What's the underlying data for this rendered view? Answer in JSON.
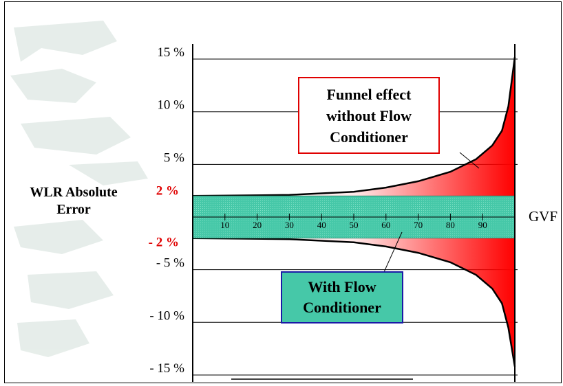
{
  "chart_data": {
    "type": "area",
    "title": "",
    "ylabel": [
      "WLR Absolute",
      "Error"
    ],
    "xlabel": "GVF",
    "y_tick_labels": [
      "15 %",
      "10 %",
      "5 %",
      "- 5 %",
      "- 10 %",
      "- 15 %"
    ],
    "y_tick_values": [
      15,
      10,
      5,
      -5,
      -10,
      -15
    ],
    "band_labels": [
      "2 %",
      "- 2 %"
    ],
    "band_values": [
      2,
      -2
    ],
    "x_tick_labels": [
      "10",
      "20",
      "30",
      "40",
      "50",
      "60",
      "70",
      "80",
      "90"
    ],
    "x_tick_values": [
      10,
      20,
      30,
      40,
      50,
      60,
      70,
      80,
      90
    ],
    "xlim": [
      0,
      100
    ],
    "ylim": [
      -15,
      15
    ],
    "series": [
      {
        "name": "Funnel effect without Flow Conditioner",
        "x": [
          0,
          30,
          50,
          60,
          70,
          80,
          88,
          93,
          96,
          98,
          100
        ],
        "upper": [
          2.0,
          2.1,
          2.4,
          2.8,
          3.4,
          4.3,
          5.5,
          6.8,
          8.2,
          10.5,
          15.2
        ],
        "lower": [
          -2.0,
          -2.1,
          -2.4,
          -2.8,
          -3.4,
          -4.3,
          -5.5,
          -6.8,
          -8.2,
          -10.5,
          -14.2
        ]
      },
      {
        "name": "With Flow Conditioner",
        "band": [
          -2,
          2
        ]
      }
    ],
    "annotations": [
      {
        "lines": [
          "Funnel effect",
          "without Flow",
          "Conditioner"
        ],
        "border_color": "#e00000"
      },
      {
        "lines": [
          "With Flow",
          "Conditioner"
        ],
        "border_color": "#1a1aa6",
        "fill": "#46c8a8"
      }
    ],
    "colors": {
      "funnel_fill": "#ff0000",
      "band_fill": "#46c8a8",
      "band_label_color": "#e00000"
    },
    "grid": true
  }
}
